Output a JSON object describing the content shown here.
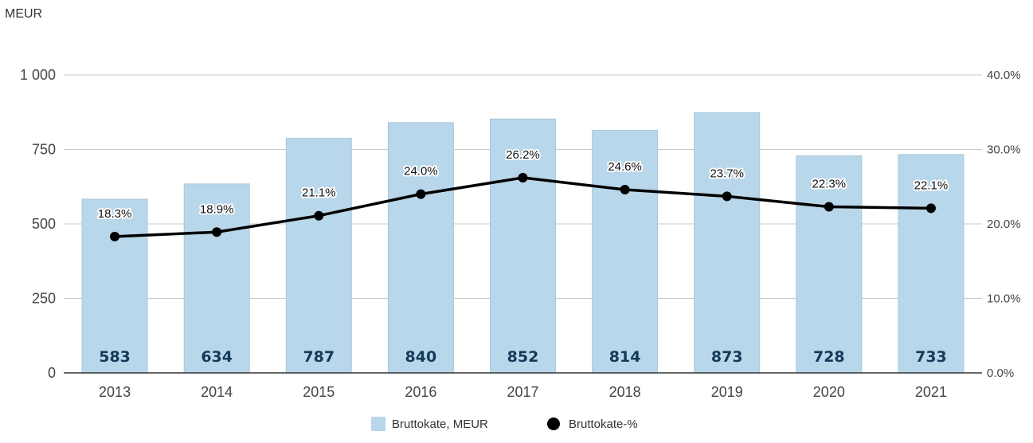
{
  "chart_data": {
    "type": "bar",
    "unit_label": "MEUR",
    "categories": [
      "2013",
      "2014",
      "2015",
      "2016",
      "2017",
      "2018",
      "2019",
      "2020",
      "2021"
    ],
    "series": [
      {
        "name": "Bruttokate, MEUR",
        "type": "bar",
        "axis": "left",
        "color": "#b9d7ea",
        "values": [
          583,
          634,
          787,
          840,
          852,
          814,
          873,
          728,
          733
        ]
      },
      {
        "name": "Bruttokate-%",
        "type": "line",
        "axis": "right",
        "color": "#000000",
        "values": [
          18.3,
          18.9,
          21.1,
          24.0,
          26.2,
          24.6,
          23.7,
          22.3,
          22.1
        ],
        "labels": [
          "18.3%",
          "18.9%",
          "21.1%",
          "24.0%",
          "26.2%",
          "24.6%",
          "23.7%",
          "22.3%",
          "22.1%"
        ]
      }
    ],
    "y_left": {
      "ylim": [
        0,
        1000
      ],
      "ticks": [
        0,
        250,
        500,
        750,
        1000
      ],
      "tick_labels": [
        "0",
        "250",
        "500",
        "750",
        "1 000"
      ]
    },
    "y_right": {
      "ylim": [
        0,
        40
      ],
      "ticks": [
        0,
        10,
        20,
        30,
        40
      ],
      "tick_labels": [
        "0.0%",
        "10.0%",
        "20.0%",
        "30.0%",
        "40.0%"
      ]
    },
    "grid": true,
    "legend_position": "bottom"
  }
}
